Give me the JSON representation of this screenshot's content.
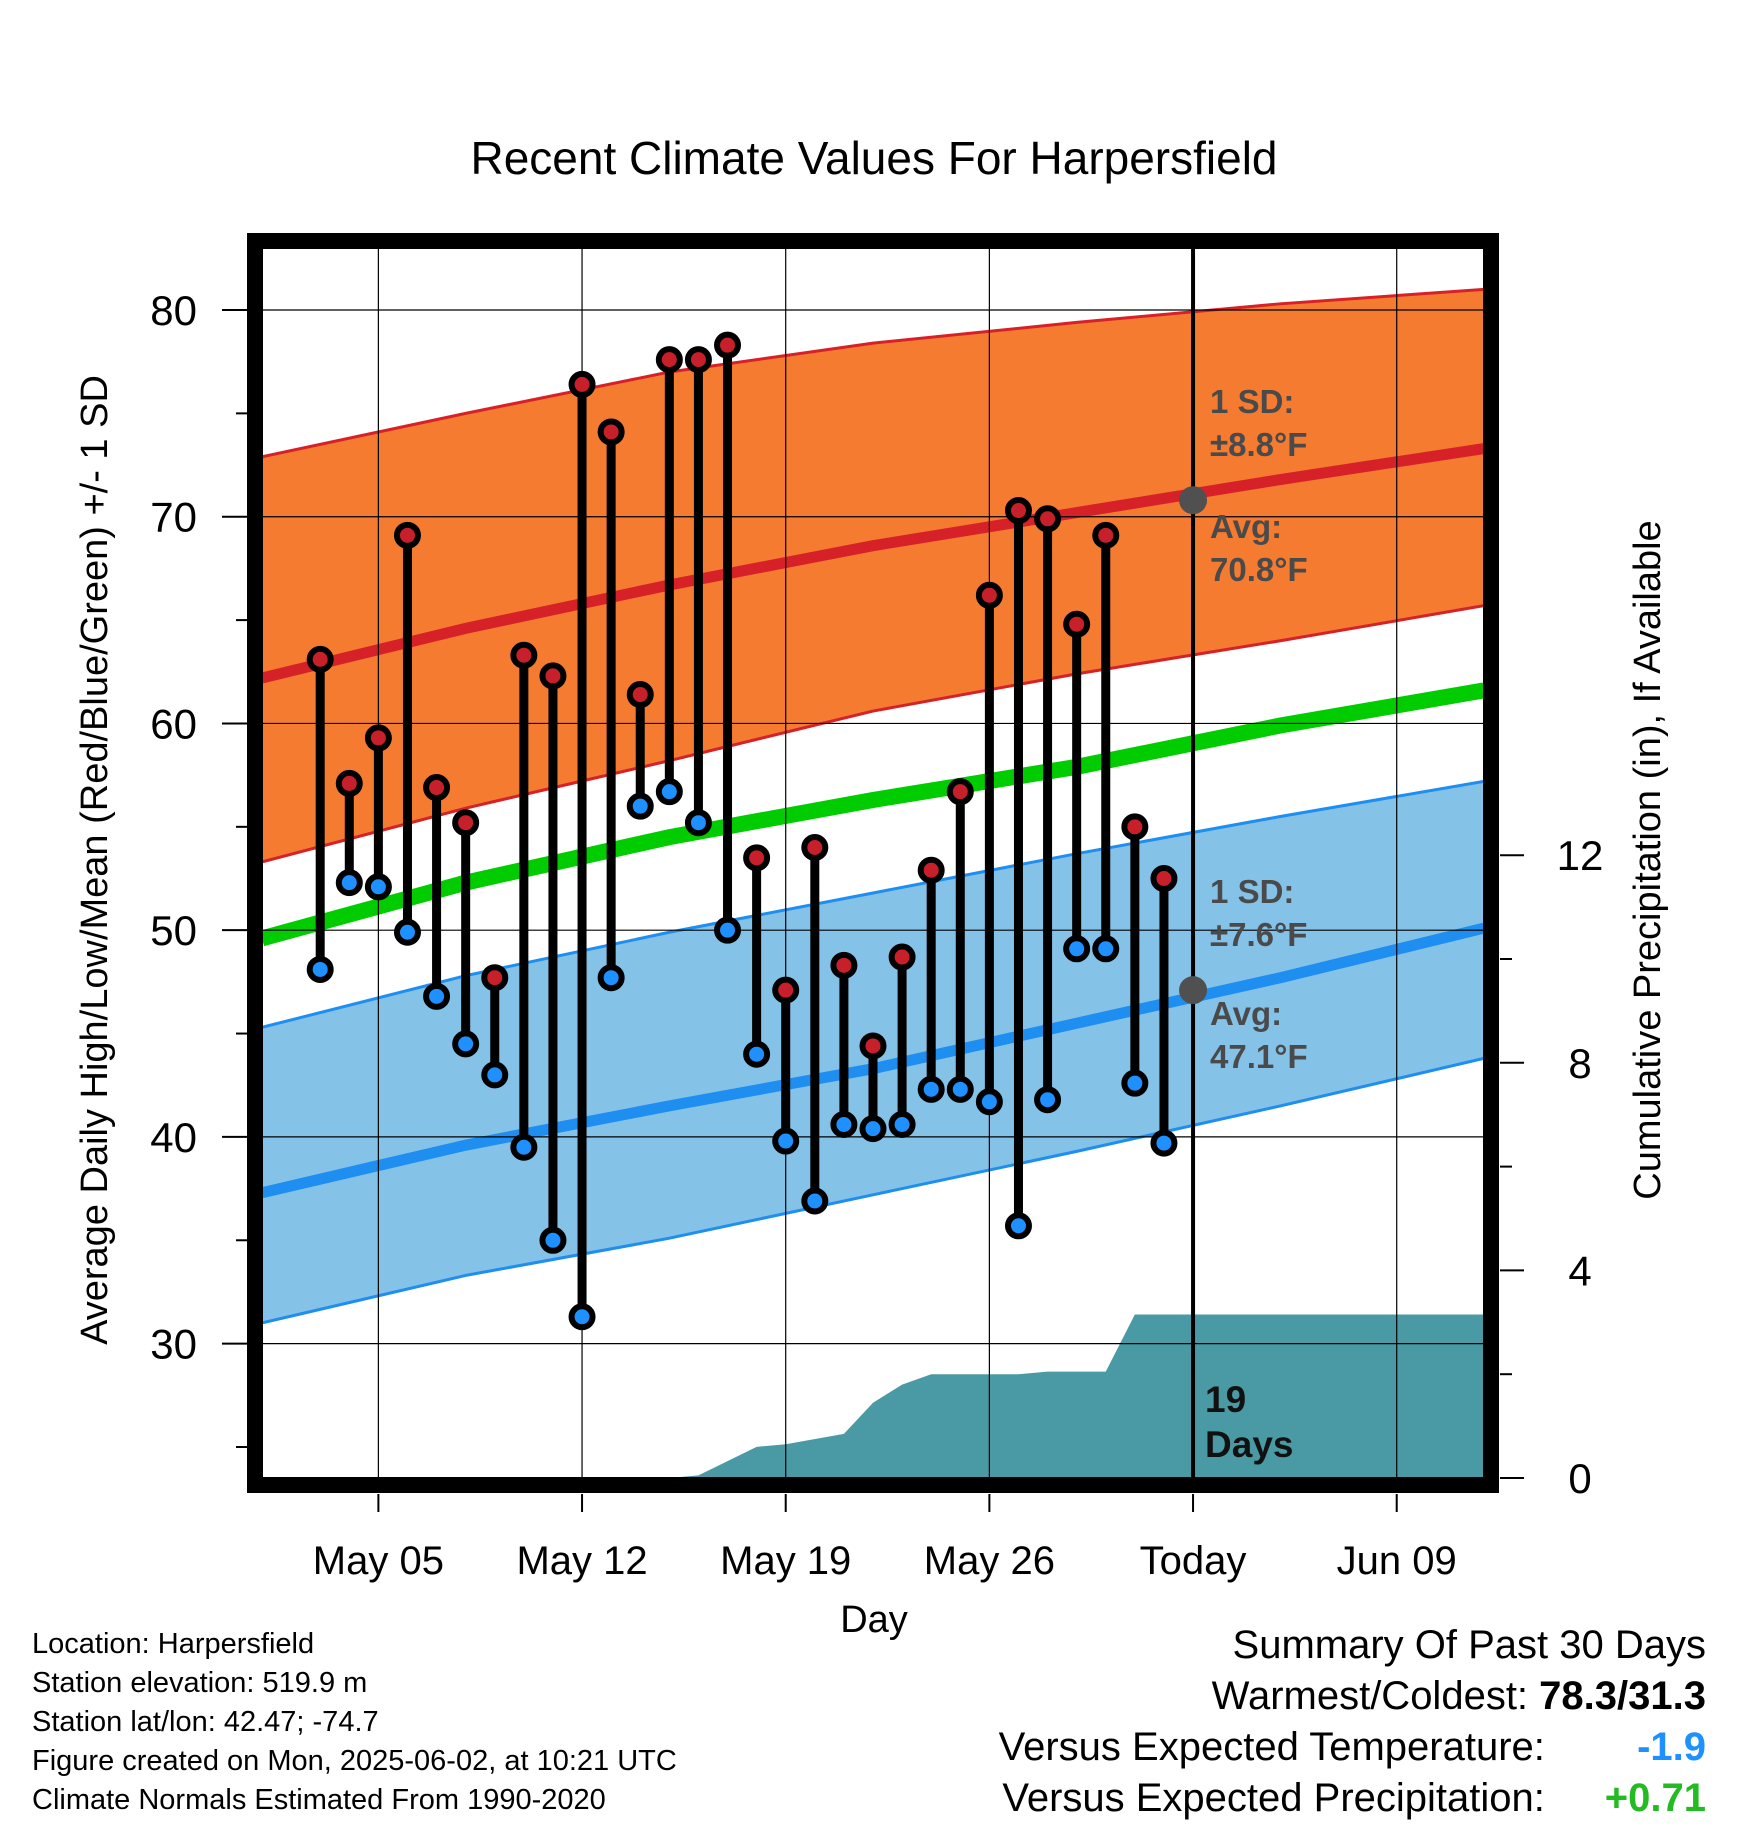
{
  "chart_data": {
    "type": "line",
    "title": "Recent Climate Values For Harpersfield",
    "xlabel": "Day",
    "ylabel": "Average Daily High/Low/Mean (Red/Blue/Green) +/- 1 SD",
    "y2label": "Cumulative Precipitation (in), If Available",
    "ylim": [
      23.5,
      83
    ],
    "y2lim": [
      0,
      23.7
    ],
    "yticks": [
      30,
      40,
      50,
      60,
      70,
      80
    ],
    "y2ticks": [
      0,
      4,
      8,
      12
    ],
    "xlim": [
      "2025-05-01",
      "2025-06-12"
    ],
    "xticks": [
      {
        "date": "2025-05-05",
        "label": "May 05"
      },
      {
        "date": "2025-05-12",
        "label": "May 12"
      },
      {
        "date": "2025-05-19",
        "label": "May 19"
      },
      {
        "date": "2025-05-26",
        "label": "May 26"
      },
      {
        "date": "2025-06-02",
        "label": "Today"
      },
      {
        "date": "2025-06-09",
        "label": "Jun 09"
      }
    ],
    "today": "2025-06-02",
    "grid": true,
    "observations": {
      "dates": [
        "2025-05-03",
        "2025-05-04",
        "2025-05-05",
        "2025-05-06",
        "2025-05-07",
        "2025-05-08",
        "2025-05-09",
        "2025-05-10",
        "2025-05-11",
        "2025-05-12",
        "2025-05-13",
        "2025-05-14",
        "2025-05-15",
        "2025-05-16",
        "2025-05-17",
        "2025-05-18",
        "2025-05-19",
        "2025-05-20",
        "2025-05-21",
        "2025-05-22",
        "2025-05-23",
        "2025-05-24",
        "2025-05-25",
        "2025-05-26",
        "2025-05-27",
        "2025-05-28",
        "2025-05-29",
        "2025-05-30",
        "2025-05-31",
        "2025-06-01"
      ],
      "high": [
        63.1,
        57.1,
        59.3,
        69.1,
        56.9,
        55.2,
        47.7,
        63.3,
        62.3,
        76.4,
        74.1,
        61.4,
        77.6,
        77.6,
        78.3,
        53.5,
        47.1,
        54.0,
        48.3,
        44.4,
        48.7,
        52.9,
        56.7,
        66.2,
        70.3,
        69.9,
        64.8,
        69.1,
        55.0,
        52.5
      ],
      "low": [
        48.1,
        52.3,
        52.1,
        49.9,
        46.8,
        44.5,
        43.0,
        39.5,
        35.0,
        31.3,
        47.7,
        56.0,
        56.7,
        55.2,
        50.0,
        44.0,
        39.8,
        36.9,
        40.6,
        40.4,
        40.6,
        42.3,
        42.3,
        41.7,
        35.7,
        41.8,
        49.1,
        49.1,
        42.6,
        39.7
      ]
    },
    "normals": {
      "dates": [
        "2025-05-01",
        "2025-05-08",
        "2025-05-15",
        "2025-05-22",
        "2025-05-29",
        "2025-06-05",
        "2025-06-12"
      ],
      "high_mean": [
        62.2,
        64.6,
        66.7,
        68.6,
        70.2,
        71.8,
        73.3
      ],
      "high_upper": [
        72.9,
        75.0,
        77.0,
        78.4,
        79.4,
        80.3,
        81.0
      ],
      "high_lower": [
        53.3,
        55.9,
        58.2,
        60.6,
        62.4,
        64.0,
        65.7
      ],
      "mean": [
        49.6,
        52.3,
        54.5,
        56.3,
        57.9,
        59.9,
        61.6
      ],
      "low_mean": [
        37.3,
        39.6,
        41.5,
        43.3,
        45.5,
        47.7,
        50.1
      ],
      "low_upper": [
        45.3,
        47.8,
        49.9,
        51.8,
        53.7,
        55.5,
        57.2
      ],
      "low_lower": [
        31.0,
        33.3,
        35.1,
        37.2,
        39.3,
        41.5,
        43.8
      ]
    },
    "precipitation": {
      "dates": [
        "2025-05-01",
        "2025-05-15",
        "2025-05-16",
        "2025-05-18",
        "2025-05-19",
        "2025-05-21",
        "2025-05-22",
        "2025-05-23",
        "2025-05-24",
        "2025-05-25",
        "2025-05-26",
        "2025-05-27",
        "2025-05-28",
        "2025-05-29",
        "2025-05-30",
        "2025-05-31",
        "2025-06-12"
      ],
      "cumulative": [
        0,
        0,
        0.05,
        0.6,
        0.65,
        0.85,
        1.45,
        1.8,
        2.0,
        2.0,
        2.0,
        2.0,
        2.05,
        2.05,
        2.05,
        3.15,
        3.15
      ]
    },
    "annotations": {
      "high_sd": [
        "1 SD:",
        "±8.8°F"
      ],
      "high_avg": [
        "Avg:",
        "70.8°F"
      ],
      "low_sd": [
        "1 SD:",
        "±7.6°F"
      ],
      "low_avg": [
        "Avg:",
        "47.1°F"
      ],
      "days": [
        "19",
        "Days"
      ]
    },
    "colors": {
      "high_band": "#f47b30",
      "high_line": "#d62128",
      "mean_line": "#00cc00",
      "low_band": "#85c2e8",
      "low_line": "#1e8ef0",
      "high_marker": "#c8202a",
      "low_marker": "#1e90ff",
      "precip_fill": "#4a9aa5",
      "annotation_text": "#4a4a4a",
      "avg_marker": "#505050"
    }
  },
  "info": {
    "location": "Location: Harpersfield",
    "elevation": "Station elevation: 519.9 m",
    "latlon": "Station lat/lon: 42.47; -74.7",
    "created": "Figure created on Mon, 2025-06-02, at 10:21 UTC",
    "normals": "Climate Normals Estimated From 1990-2020"
  },
  "summary": {
    "title": "Summary Of Past 30 Days",
    "warm_cold_label": "Warmest/Coldest:",
    "warm_cold_value": "78.3/31.3",
    "temp_label": "Versus Expected Temperature:",
    "temp_value": "-1.9",
    "temp_color": "#1e90ff",
    "precip_label": "Versus Expected Precipitation:",
    "precip_value": "+0.71",
    "precip_color": "#22bb22"
  }
}
